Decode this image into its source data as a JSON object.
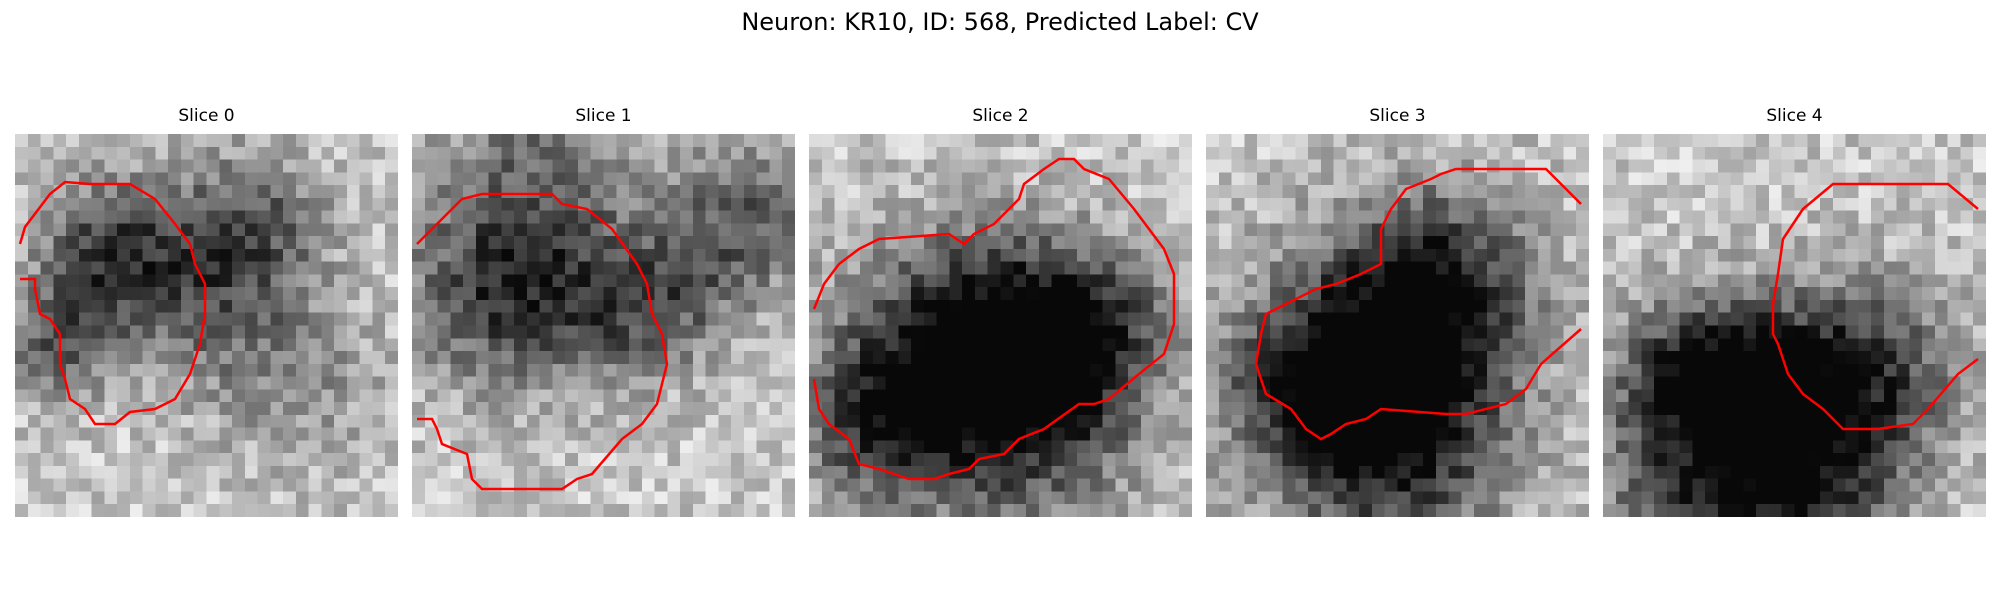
{
  "figure": {
    "title": "Neuron: KR10, ID: 568, Predicted Label: CV",
    "colormap": "gray",
    "contour_color": "#ff0000"
  },
  "slices": [
    {
      "title": "Slice 0"
    },
    {
      "title": "Slice 1"
    },
    {
      "title": "Slice 2"
    },
    {
      "title": "Slice 3"
    },
    {
      "title": "Slice 4"
    }
  ]
}
